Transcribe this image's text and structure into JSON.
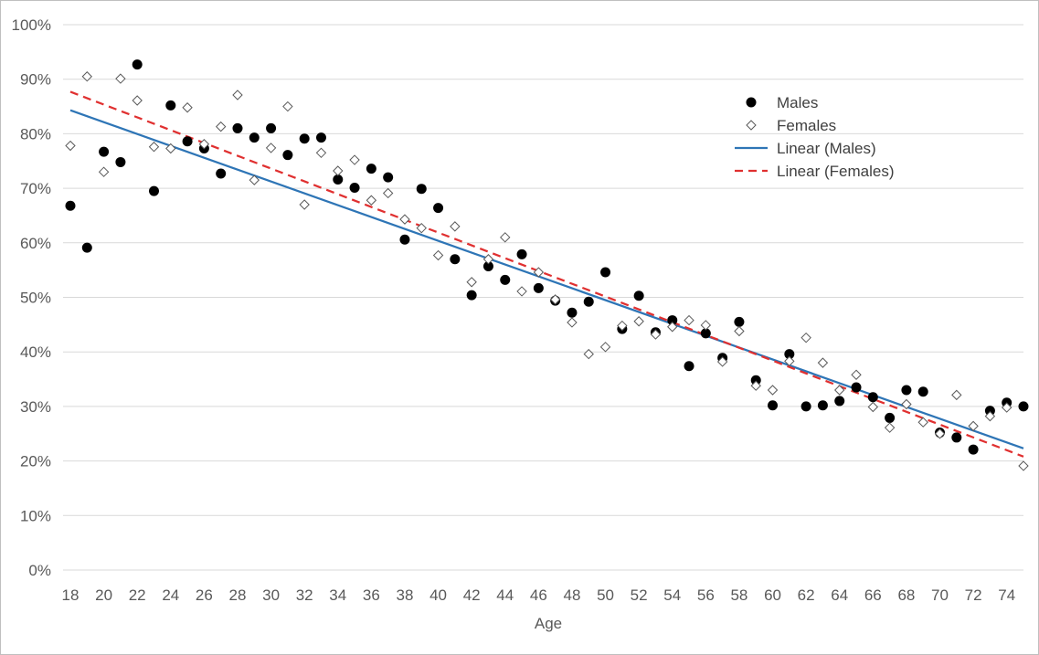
{
  "chart_data": {
    "type": "scatter",
    "title": "",
    "xlabel": "Age",
    "ylabel": "",
    "xlim": [
      18,
      75
    ],
    "ylim": [
      0,
      100
    ],
    "x_ticks": [
      18,
      20,
      22,
      24,
      26,
      28,
      30,
      32,
      34,
      36,
      38,
      40,
      42,
      44,
      46,
      48,
      50,
      52,
      54,
      56,
      58,
      60,
      62,
      64,
      66,
      68,
      70,
      72,
      74
    ],
    "y_ticks": [
      0,
      10,
      20,
      30,
      40,
      50,
      60,
      70,
      80,
      90,
      100
    ],
    "y_tick_suffix": "%",
    "grid": "horizontal",
    "legend_position": "top-right",
    "series": [
      {
        "name": "Males",
        "marker": "filled-circle",
        "color": "#000000",
        "points": [
          [
            18,
            66.8
          ],
          [
            19,
            59.1
          ],
          [
            20,
            76.7
          ],
          [
            21,
            74.8
          ],
          [
            22,
            92.7
          ],
          [
            23,
            69.5
          ],
          [
            24,
            85.2
          ],
          [
            25,
            78.6
          ],
          [
            26,
            77.3
          ],
          [
            27,
            72.7
          ],
          [
            28,
            81.0
          ],
          [
            29,
            79.3
          ],
          [
            30,
            81.0
          ],
          [
            31,
            76.1
          ],
          [
            32,
            79.1
          ],
          [
            33,
            79.3
          ],
          [
            34,
            71.6
          ],
          [
            35,
            70.1
          ],
          [
            36,
            73.6
          ],
          [
            37,
            72.0
          ],
          [
            38,
            60.6
          ],
          [
            39,
            69.9
          ],
          [
            40,
            66.4
          ],
          [
            41,
            57.0
          ],
          [
            42,
            50.4
          ],
          [
            43,
            55.7
          ],
          [
            44,
            53.2
          ],
          [
            45,
            57.9
          ],
          [
            46,
            51.7
          ],
          [
            47,
            49.4
          ],
          [
            48,
            47.2
          ],
          [
            49,
            49.2
          ],
          [
            50,
            54.6
          ],
          [
            51,
            44.2
          ],
          [
            52,
            50.3
          ],
          [
            53,
            43.6
          ],
          [
            54,
            45.8
          ],
          [
            55,
            37.4
          ],
          [
            56,
            43.4
          ],
          [
            57,
            38.9
          ],
          [
            58,
            45.5
          ],
          [
            59,
            34.8
          ],
          [
            60,
            30.2
          ],
          [
            61,
            39.6
          ],
          [
            62,
            30.0
          ],
          [
            63,
            30.2
          ],
          [
            64,
            31.0
          ],
          [
            65,
            33.5
          ],
          [
            66,
            31.7
          ],
          [
            67,
            27.9
          ],
          [
            68,
            33.0
          ],
          [
            69,
            32.7
          ],
          [
            70,
            25.2
          ],
          [
            71,
            24.3
          ],
          [
            72,
            22.1
          ],
          [
            73,
            29.2
          ],
          [
            74,
            30.7
          ],
          [
            75,
            30.0
          ]
        ]
      },
      {
        "name": "Females",
        "marker": "open-diamond",
        "color": "#595959",
        "points": [
          [
            18,
            77.8
          ],
          [
            19,
            90.5
          ],
          [
            20,
            73.0
          ],
          [
            21,
            90.1
          ],
          [
            22,
            86.1
          ],
          [
            23,
            77.6
          ],
          [
            24,
            77.3
          ],
          [
            25,
            84.8
          ],
          [
            26,
            78.1
          ],
          [
            27,
            81.3
          ],
          [
            28,
            87.1
          ],
          [
            29,
            71.5
          ],
          [
            30,
            77.4
          ],
          [
            31,
            85.0
          ],
          [
            32,
            67.0
          ],
          [
            33,
            76.5
          ],
          [
            34,
            73.2
          ],
          [
            35,
            75.2
          ],
          [
            36,
            67.8
          ],
          [
            37,
            69.1
          ],
          [
            38,
            64.3
          ],
          [
            39,
            62.7
          ],
          [
            40,
            57.7
          ],
          [
            41,
            63.0
          ],
          [
            42,
            52.8
          ],
          [
            43,
            57.0
          ],
          [
            44,
            61.0
          ],
          [
            45,
            51.1
          ],
          [
            46,
            54.6
          ],
          [
            47,
            49.6
          ],
          [
            48,
            45.4
          ],
          [
            49,
            39.6
          ],
          [
            50,
            40.9
          ],
          [
            51,
            44.8
          ],
          [
            52,
            45.6
          ],
          [
            53,
            43.2
          ],
          [
            54,
            44.6
          ],
          [
            55,
            45.8
          ],
          [
            56,
            44.9
          ],
          [
            57,
            38.2
          ],
          [
            58,
            43.8
          ],
          [
            59,
            33.8
          ],
          [
            60,
            33.0
          ],
          [
            61,
            38.3
          ],
          [
            62,
            42.6
          ],
          [
            63,
            38.0
          ],
          [
            64,
            33.0
          ],
          [
            65,
            35.8
          ],
          [
            66,
            29.9
          ],
          [
            67,
            26.1
          ],
          [
            68,
            30.4
          ],
          [
            69,
            27.1
          ],
          [
            70,
            25.0
          ],
          [
            71,
            32.1
          ],
          [
            72,
            26.4
          ],
          [
            73,
            28.2
          ],
          [
            74,
            29.8
          ],
          [
            75,
            19.1
          ]
        ]
      },
      {
        "name": "Linear (Males)",
        "type": "trendline",
        "style": "solid",
        "color": "#2e75b6",
        "start": [
          18,
          84.3
        ],
        "end": [
          75,
          22.3
        ]
      },
      {
        "name": "Linear (Females)",
        "type": "trendline",
        "style": "dashed",
        "color": "#e03030",
        "start": [
          18,
          87.7
        ],
        "end": [
          75,
          20.8
        ]
      }
    ]
  }
}
